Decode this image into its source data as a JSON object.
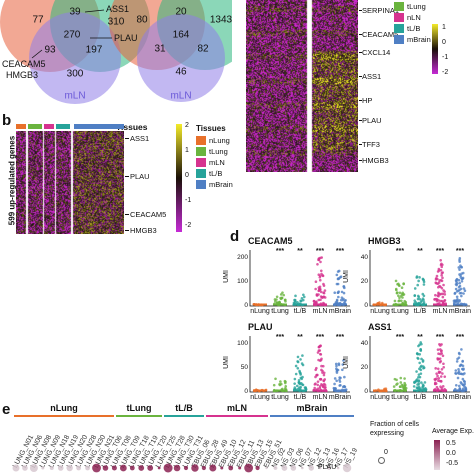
{
  "panel_letters": {
    "b": "b",
    "d": "d",
    "e": "e"
  },
  "venn_left": {
    "numbers": {
      "lung_only": "77",
      "top_overlap": "39",
      "right_only": "310",
      "center": "270",
      "left_overlap": "93",
      "right_overlap": "197",
      "bottom_only": "300"
    },
    "label_bottom": "mLN",
    "gene_labels": {
      "ass1": "ASS1",
      "plau": "PLAU",
      "ceacam5": "CEACAM5",
      "hmgb3": "HMGB3"
    },
    "colors": {
      "red": "#e8603c",
      "green": "#2cb67d",
      "purple": "#8f7ee8"
    }
  },
  "venn_right": {
    "numbers": {
      "left_only": "80",
      "top_overlap": "20",
      "right_only": "1343",
      "center": "164",
      "left_overlap": "31",
      "right_overlap": "82",
      "bottom_only": "46"
    },
    "label_bottom": "mLN"
  },
  "panel_c": {
    "gene_labels": [
      "SERPINA1",
      "CEACAM5",
      "CXCL14",
      "ASS1",
      "HP",
      "PLAU",
      "TFF3",
      "HMGB3"
    ],
    "legend": [
      "tLung",
      "nLN",
      "tL/B",
      "mBrain"
    ],
    "scale_ticks": [
      "1",
      "0",
      "-1",
      "-2"
    ]
  },
  "panel_b": {
    "tissues_label": "Tissues",
    "ylabel": "599 up-regulated genes",
    "gene_labels": [
      "ASS1",
      "PLAU",
      "CEACAM5",
      "HMGB3"
    ],
    "scale_ticks": [
      "2",
      "1",
      "0",
      "-1",
      "-2"
    ],
    "legend_title": "Tissues",
    "legend": [
      {
        "label": "nLung",
        "color": "#e8702a"
      },
      {
        "label": "tLung",
        "color": "#6ab43e"
      },
      {
        "label": "mLN",
        "color": "#d6338f"
      },
      {
        "label": "tL/B",
        "color": "#27a39a"
      },
      {
        "label": "mBrain",
        "color": "#4f7fc4"
      }
    ],
    "bar_colors": [
      "#e8702a",
      "#6ab43e",
      "#d6338f",
      "#27a39a",
      "#4f7fc4"
    ]
  },
  "panel_d": {
    "ylabel": "UMI",
    "categories": [
      "nLung",
      "tLung",
      "tL/B",
      "mLN",
      "mBrain"
    ],
    "sig_marks": [
      "***",
      "**",
      "***",
      "***"
    ],
    "colors": [
      "#e8702a",
      "#6ab43e",
      "#27a39a",
      "#d6338f",
      "#4f7fc4"
    ],
    "plots": [
      {
        "title": "CEACAM5",
        "yticks": [
          "0",
          "100",
          "200"
        ],
        "ymax": 250
      },
      {
        "title": "HMGB3",
        "yticks": [
          "0",
          "20",
          "40"
        ],
        "ymax": 55
      },
      {
        "title": "PLAU",
        "yticks": [
          "0",
          "50",
          "100"
        ],
        "ymax": 130
      },
      {
        "title": "ASS1",
        "yticks": [
          "0",
          "20",
          "40"
        ],
        "ymax": 55
      }
    ]
  },
  "panel_e": {
    "groups": [
      {
        "label": "nLung",
        "color": "#e8702a"
      },
      {
        "label": "tLung",
        "color": "#6ab43e"
      },
      {
        "label": "tL/B",
        "color": "#27a39a"
      },
      {
        "label": "mLN",
        "color": "#d6338f"
      },
      {
        "label": "mBrain",
        "color": "#4f7fc4"
      }
    ],
    "samples": [
      "LUNG_N01",
      "LUNG_N06",
      "LUNG_N08",
      "LUNG_N09",
      "LUNG_N18",
      "LUNG_N19",
      "LUNG_N20",
      "LUNG_N28",
      "LUNG_N30",
      "LUNG_N31",
      "LUNG_T06",
      "LUNG_T08",
      "LUNG_T09",
      "LUNG_T18",
      "LUNG_T19",
      "LUNG_T20",
      "LUNG_T25",
      "LUNG_T28",
      "LUNG_T30",
      "LUNG_T31",
      "EBUS_06",
      "EBUS_28",
      "EBUS_49",
      "EBUS_10",
      "EBUS_12",
      "EBUS_11",
      "EBUS_13",
      "EBUS_15",
      "EBUS_51",
      "NS_02",
      "NS_03",
      "NS_06",
      "NS_07",
      "NS_12",
      "NS_13",
      "NS_16",
      "NS_17",
      "NS_19"
    ],
    "gene_label": "PLAU",
    "size_legend_title": "Fraction of cells expressing",
    "size_legend_value": "0",
    "color_legend_title": "Average Exp.",
    "color_legend_values": [
      "0.5",
      "0.0",
      "-0.5"
    ]
  }
}
